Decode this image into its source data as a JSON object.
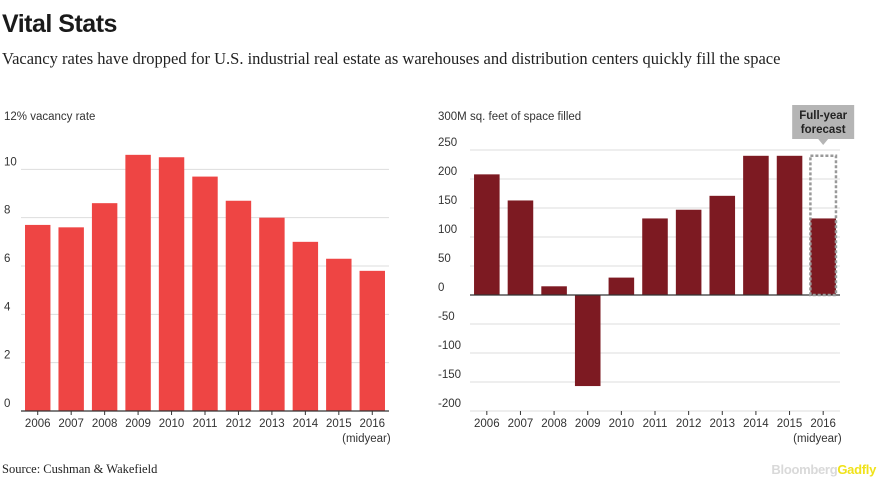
{
  "header": {
    "title": "Vital Stats",
    "subtitle": "Vacancy rates have dropped for U.S. industrial real estate as warehouses and distribution centers quickly fill the space"
  },
  "footer": {
    "source": "Source: Cushman & Wakefield",
    "brand_main": "Bloomberg",
    "brand_accent": "Gadfly"
  },
  "colors": {
    "left_bar": "#ee4544",
    "right_bar": "#7d1a22",
    "axis": "#333333",
    "grid": "#dddddd",
    "forecast_box": "#999999",
    "forecast_label_bg": "#b5b5b5"
  },
  "chart_data": [
    {
      "type": "bar",
      "title": "",
      "ylabel": "12% vacancy rate",
      "xlabel": "",
      "x_note": "(midyear)",
      "categories": [
        "2006",
        "2007",
        "2008",
        "2009",
        "2010",
        "2011",
        "2012",
        "2013",
        "2014",
        "2015",
        "2016"
      ],
      "values": [
        7.7,
        7.6,
        8.6,
        10.6,
        10.5,
        9.7,
        8.7,
        8.0,
        7.0,
        6.3,
        5.8
      ],
      "ylim": [
        0,
        12
      ],
      "yticks": [
        0,
        2,
        4,
        6,
        8,
        10
      ],
      "ytick_labels": [
        "0",
        "2",
        "4",
        "6",
        "8",
        "10"
      ],
      "grid": true
    },
    {
      "type": "bar",
      "title": "",
      "ylabel": "300M sq. feet of space filled",
      "xlabel": "",
      "x_note": "(midyear)",
      "categories": [
        "2006",
        "2007",
        "2008",
        "2009",
        "2010",
        "2011",
        "2012",
        "2013",
        "2014",
        "2015",
        "2016"
      ],
      "values": [
        208,
        163,
        15,
        -157,
        30,
        132,
        147,
        171,
        240,
        240,
        132
      ],
      "ylim": [
        -200,
        300
      ],
      "yticks": [
        -200,
        -150,
        -100,
        -50,
        0,
        50,
        100,
        150,
        200,
        250
      ],
      "ytick_labels": [
        "-200",
        "-150",
        "-100",
        "-50",
        "0",
        "50",
        "100",
        "150",
        "200",
        "250"
      ],
      "grid": true,
      "annotation": {
        "text_line1": "Full-year",
        "text_line2": "forecast",
        "category": "2016",
        "forecast_value": 240
      }
    }
  ]
}
